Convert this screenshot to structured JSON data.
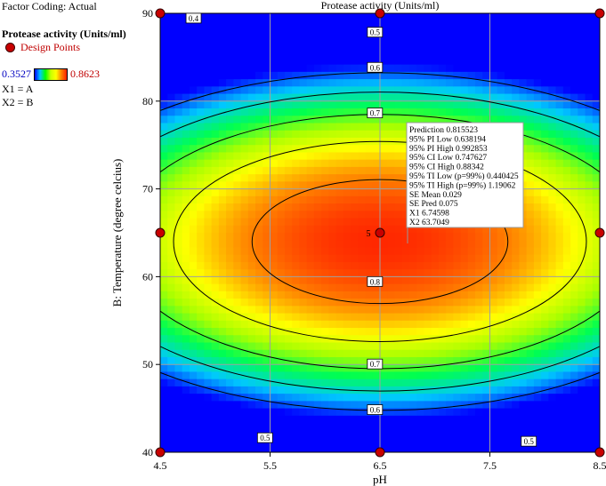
{
  "legend": {
    "factor_coding": "Factor Coding: Actual",
    "response_title": "Protease activity (Units/ml)",
    "design_points_label": "Design Points",
    "range_low": "0.3527",
    "range_high": "0.8623",
    "x1_label": "X1 = A",
    "x2_label": "X2 = B"
  },
  "tooltip": {
    "lines": [
      "Prediction  0.815523",
      "95% PI Low  0.638194",
      "95% PI High  0.992853",
      "95% CI Low  0.747627",
      "95% CI High  0.88342",
      "95% TI Low (p=99%)  0.440425",
      "95% TI High (p=99%)  1.19062",
      "SE Mean  0.029",
      "SE Pred  0.075",
      "X1  6.74598",
      "X2  63.7049"
    ]
  },
  "colors": {
    "low": "#0000ff",
    "mid": "#00ff00",
    "high": "#ff2000",
    "design_point": "#c80000"
  },
  "chart_data": {
    "type": "contour",
    "title": "Protease activity (Units/ml)",
    "xlabel": "pH",
    "ylabel": "B: Temperature (degree celcius)",
    "xlim": [
      4.5,
      8.5
    ],
    "ylim": [
      40,
      90
    ],
    "x_ticks": [
      "4.5",
      "5.5",
      "6.5",
      "7.5",
      "8.5"
    ],
    "y_ticks": [
      "40",
      "50",
      "60",
      "70",
      "80",
      "90"
    ],
    "grid": true,
    "response_min": 0.3527,
    "response_max": 0.8623,
    "center": {
      "x": 6.5,
      "y": 64
    },
    "contour_levels": [
      0.4,
      0.5,
      0.6,
      0.7,
      0.8
    ],
    "contour_labels": [
      {
        "level": "0.4",
        "x": 4.8,
        "y": 89.4
      },
      {
        "level": "0.5",
        "x": 6.45,
        "y": 87.8
      },
      {
        "level": "0.6",
        "x": 6.45,
        "y": 83.8
      },
      {
        "level": "0.7",
        "x": 6.45,
        "y": 78.6
      },
      {
        "level": "0.8",
        "x": 6.45,
        "y": 59.4
      },
      {
        "level": "0.7",
        "x": 6.45,
        "y": 50.0
      },
      {
        "level": "0.6",
        "x": 6.45,
        "y": 44.8
      },
      {
        "level": "0.5",
        "x": 5.45,
        "y": 41.6
      },
      {
        "level": "0.5",
        "x": 7.85,
        "y": 41.2
      }
    ],
    "design_points": [
      {
        "x": 4.5,
        "y": 90
      },
      {
        "x": 6.5,
        "y": 90
      },
      {
        "x": 8.5,
        "y": 90
      },
      {
        "x": 4.5,
        "y": 65
      },
      {
        "x": 6.5,
        "y": 65
      },
      {
        "x": 8.5,
        "y": 65
      },
      {
        "x": 4.5,
        "y": 40
      },
      {
        "x": 6.5,
        "y": 40
      },
      {
        "x": 8.5,
        "y": 40
      }
    ],
    "center_point_count": "5",
    "prediction_point": {
      "x": 6.74598,
      "y": 63.7049
    }
  }
}
